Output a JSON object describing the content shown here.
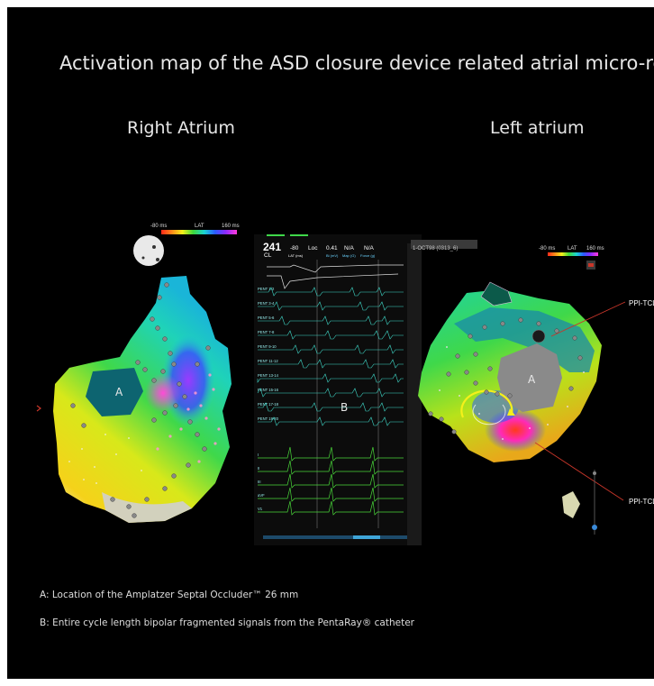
{
  "title": "Activation map of the ASD closure device related atrial micro-reentry",
  "right_panel_title": "Right Atrium",
  "left_panel_title": "Left atrium",
  "lat_scale": {
    "min_label": "-80 ms",
    "label": "LAT",
    "max_label": "160 ms",
    "gradient": [
      "#ff2a1a",
      "#ff8a1a",
      "#f5f01a",
      "#3fd83a",
      "#1ad3d3",
      "#2a5cff",
      "#8a2aff",
      "#ff3ad8"
    ]
  },
  "ra_map": {
    "device_label": "A"
  },
  "la_map": {
    "device_label": "A",
    "annotations": [
      "PPI-TCL",
      "PPI-TCL"
    ],
    "leader_color": "#c8362a"
  },
  "ecg": {
    "cycle": "241",
    "cycle_unit": "CL",
    "lat": "-80",
    "lat_unit": "LAT (ms)",
    "loc": "Loc",
    "voltage": "0.41",
    "voltage_unit": "Bi (mV)",
    "na1": "N/A",
    "na1_unit": "Map (G)",
    "na2": "N/A",
    "na2_unit": "Force (g)",
    "map_name": "1-OCT98 (0313_6)",
    "bipolar_channels": [
      "PENT 1-2",
      "PENT 3-4",
      "PENT 5-6",
      "PENT 7-8",
      "PENT 9-10",
      "PENT 11-12",
      "PENT 13-14",
      "PENT 15-16",
      "PENT 17-18",
      "PENT 19-20"
    ],
    "surface_channels": [
      "I",
      "II",
      "III",
      "aVF",
      "V1"
    ],
    "signal_label": "B"
  },
  "legend": {
    "a": "A: Location of the Amplatzer Septal Occluder™ 26 mm",
    "b": "B: Entire cycle length bipolar fragmented signals from the PentaRay® catheter"
  }
}
